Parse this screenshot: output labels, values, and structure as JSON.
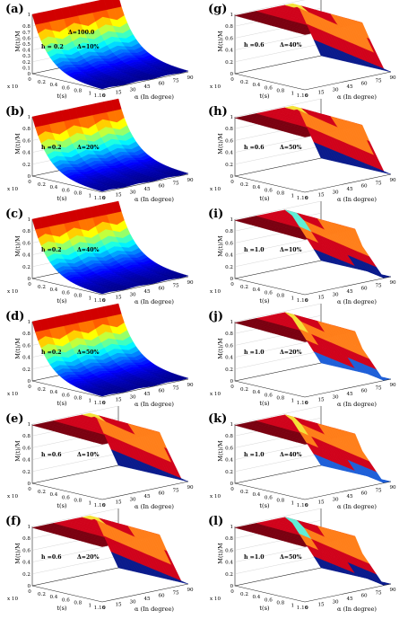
{
  "chart_data": [
    {
      "panel": "(a)",
      "type": "surface",
      "annotations": [
        "Δ=100.0",
        "h = 0.2",
        "Δ=10%"
      ],
      "ylabel": "M(t)/M",
      "xlabel": "t(s)",
      "zlabel": "α (In degree)",
      "t_ticks": [
        "0",
        "0.2",
        "0.4",
        "0.6",
        "0.8",
        "1",
        "1.16"
      ],
      "t_exp": "x 10",
      "alpha_ticks": [
        "0",
        "15",
        "30",
        "45",
        "60",
        "75",
        "90"
      ],
      "m_ticks": [
        "0",
        "0.1",
        "0.2",
        "0.3",
        "0.4",
        "0.5",
        "0.6",
        "0.7",
        "0.8",
        "1"
      ],
      "surface": "decay"
    },
    {
      "panel": "(b)",
      "type": "surface",
      "annotations": [
        "h =0.2",
        "Δ=20%"
      ],
      "ylabel": "M(t)/M",
      "xlabel": "t(s)",
      "zlabel": "α (In degree)",
      "t_ticks": [
        "0",
        "0.2",
        "0.4",
        "0.6",
        "0.8",
        "1",
        "1.16"
      ],
      "t_exp": "x 10",
      "alpha_ticks": [
        "0",
        "15",
        "30",
        "45",
        "60",
        "75",
        "90"
      ],
      "m_ticks": [
        "0",
        "0.2",
        "0.4",
        "0.6",
        "0.8",
        "1"
      ],
      "surface": "decay"
    },
    {
      "panel": "(c)",
      "type": "surface",
      "annotations": [
        "h =0.2",
        "Δ=40%"
      ],
      "ylabel": "M(t)/M",
      "xlabel": "t(s)",
      "zlabel": "α (In degree)",
      "t_ticks": [
        "0",
        "0.2",
        "0.4",
        "0.6",
        "0.8",
        "1",
        "1.16"
      ],
      "t_exp": "x 10",
      "alpha_ticks": [
        "0",
        "15",
        "30",
        "45",
        "60",
        "75",
        "90"
      ],
      "m_ticks": [
        "0",
        "0.2",
        "0.4",
        "0.6",
        "0.8",
        "1"
      ],
      "surface": "decay"
    },
    {
      "panel": "(d)",
      "type": "surface",
      "annotations": [
        "h =0.2",
        "Δ=50%"
      ],
      "ylabel": "M(t)/M",
      "xlabel": "t(s)",
      "zlabel": "α (In degree)",
      "t_ticks": [
        "0",
        "0.2",
        "0.4",
        "0.6",
        "0.8",
        "1",
        "1.16"
      ],
      "t_exp": "x 10",
      "alpha_ticks": [
        "0",
        "15",
        "30",
        "45",
        "60",
        "75",
        "90"
      ],
      "m_ticks": [
        "0",
        "0.2",
        "0.4",
        "0.6",
        "0.8",
        "1"
      ],
      "surface": "decay"
    },
    {
      "panel": "(e)",
      "type": "surface",
      "annotations": [
        "h =0.6",
        "Δ=10%"
      ],
      "ylabel": "M(t)/M",
      "xlabel": "t(s)",
      "zlabel": "α (In degree)",
      "t_ticks": [
        "0",
        "0.2",
        "0.4",
        "0.6",
        "0.8",
        "1",
        "1.16"
      ],
      "t_exp": "x 10",
      "alpha_ticks": [
        "0",
        "15",
        "30",
        "45",
        "60",
        "75",
        "90"
      ],
      "m_ticks": [
        "0",
        "0.2",
        "0.4",
        "0.6",
        "0.8",
        "1"
      ],
      "surface": "step"
    },
    {
      "panel": "(f)",
      "type": "surface",
      "annotations": [
        "h =0.6",
        "Δ=20%"
      ],
      "ylabel": "M(t)/M",
      "xlabel": "t(s)",
      "zlabel": "α (In degree)",
      "t_ticks": [
        "0",
        "0.2",
        "0.4",
        "0.6",
        "0.8",
        "1",
        "1.16"
      ],
      "t_exp": "x 10",
      "alpha_ticks": [
        "0",
        "15",
        "30",
        "45",
        "60",
        "75",
        "90"
      ],
      "m_ticks": [
        "0",
        "0.2",
        "0.4",
        "0.6",
        "0.8",
        "1"
      ],
      "surface": "step"
    },
    {
      "panel": "(g)",
      "type": "surface",
      "annotations": [
        "h =0.6",
        "Δ=40%"
      ],
      "ylabel": "M(t)/M",
      "xlabel": "t(s)",
      "zlabel": "α (In degree)",
      "t_ticks": [
        "0",
        "0.2",
        "0.4",
        "0.6",
        "0.8",
        "1",
        "1.16"
      ],
      "t_exp": "x 10",
      "alpha_ticks": [
        "0",
        "15",
        "30",
        "45",
        "60",
        "75",
        "90"
      ],
      "m_ticks": [
        "0",
        "0.2",
        "0.4",
        "0.6",
        "0.8",
        "1"
      ],
      "surface": "step"
    },
    {
      "panel": "(h)",
      "type": "surface",
      "annotations": [
        "h =0.6",
        "Δ=50%"
      ],
      "ylabel": "M(t)/M",
      "xlabel": "t(s)",
      "zlabel": "α (In degree)",
      "t_ticks": [
        "0",
        "0.2",
        "0.4",
        "0.6",
        "0.8",
        "1",
        "1.16"
      ],
      "t_exp": "x 10",
      "alpha_ticks": [
        "0",
        "15",
        "30",
        "45",
        "60",
        "75",
        "90"
      ],
      "m_ticks": [
        "0",
        "0.2",
        "0.4",
        "0.6",
        "0.8",
        "1"
      ],
      "surface": "step"
    },
    {
      "panel": "(i)",
      "type": "surface",
      "annotations": [
        "h =1.0",
        "Δ=10%"
      ],
      "ylabel": "M(t)/M",
      "xlabel": "t(s)",
      "zlabel": "α (In degree)",
      "t_ticks": [
        "0",
        "0.2",
        "0.4",
        "0.6",
        "0.8",
        "1",
        "1.16"
      ],
      "t_exp": "x 10",
      "alpha_ticks": [
        "0",
        "15",
        "30",
        "45",
        "60",
        "75",
        "90"
      ],
      "m_ticks": [
        "0",
        "0.2",
        "0.4",
        "0.6",
        "0.8",
        "1"
      ],
      "surface": "step_cyan"
    },
    {
      "panel": "(j)",
      "type": "surface",
      "annotations": [
        "h =1.0",
        "Δ=20%"
      ],
      "ylabel": "M(t)/M",
      "xlabel": "t(s)",
      "zlabel": "α (In degree)",
      "t_ticks": [
        "0",
        "0.2",
        "0.4",
        "0.6",
        "0.8",
        "1",
        "1.16"
      ],
      "t_exp": "x 10",
      "alpha_ticks": [
        "0",
        "15",
        "30",
        "45",
        "60",
        "75",
        "90"
      ],
      "m_ticks": [
        "0",
        "0.2",
        "0.4",
        "0.6",
        "0.8",
        "1"
      ],
      "surface": "step_blue"
    },
    {
      "panel": "(k)",
      "type": "surface",
      "annotations": [
        "h =1.0",
        "Δ=40%"
      ],
      "ylabel": "M(t)/M",
      "xlabel": "t(s)",
      "zlabel": "α (In degree)",
      "t_ticks": [
        "0",
        "0.2",
        "0.4",
        "0.6",
        "0.8",
        "1",
        "1.16"
      ],
      "t_exp": "x 10",
      "alpha_ticks": [
        "0",
        "15",
        "30",
        "45",
        "60",
        "75",
        "90"
      ],
      "m_ticks": [
        "0",
        "0.2",
        "0.4",
        "0.6",
        "0.8",
        "1"
      ],
      "surface": "step_blue"
    },
    {
      "panel": "(l)",
      "type": "surface",
      "annotations": [
        "h =1.0",
        "Δ=50%"
      ],
      "ylabel": "M(t)/M",
      "xlabel": "t(s)",
      "zlabel": "α (In degree)",
      "t_ticks": [
        "0",
        "0.2",
        "0.4",
        "0.6",
        "0.8",
        "1",
        "1.16"
      ],
      "t_exp": "x 10",
      "alpha_ticks": [
        "0",
        "15",
        "30",
        "45",
        "60",
        "75",
        "90"
      ],
      "m_ticks": [
        "0",
        "0.2",
        "0.4",
        "0.6",
        "0.8",
        "1"
      ],
      "surface": "step_cyan"
    }
  ],
  "colors": {
    "red": "#d0021b",
    "orange": "#ff7f1a",
    "yellow": "#f5e23a",
    "cyan": "#5ff0d8",
    "blue": "#1e5fd8",
    "navy": "#0a1a8c",
    "maroon": "#7a0010"
  }
}
